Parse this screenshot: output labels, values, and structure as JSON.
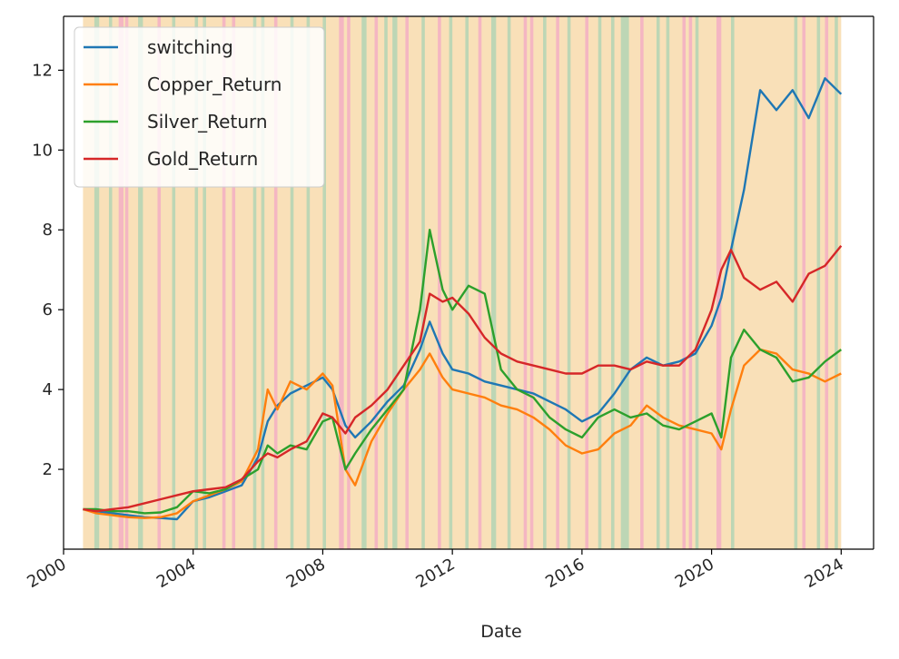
{
  "chart_data": {
    "type": "line",
    "title": "",
    "xlabel": "Date",
    "ylabel": "",
    "xlim": [
      2000.0,
      2025.0
    ],
    "ylim": [
      0.0,
      13.35
    ],
    "x_ticks": [
      {
        "value": 2000,
        "label": "2000"
      },
      {
        "value": 2004,
        "label": "2004"
      },
      {
        "value": 2008,
        "label": "2008"
      },
      {
        "value": 2012,
        "label": "2012"
      },
      {
        "value": 2016,
        "label": "2016"
      },
      {
        "value": 2020,
        "label": "2020"
      },
      {
        "value": 2024,
        "label": "2024"
      }
    ],
    "y_ticks": [
      {
        "value": 2,
        "label": "2"
      },
      {
        "value": 4,
        "label": "4"
      },
      {
        "value": 6,
        "label": "6"
      },
      {
        "value": 8,
        "label": "8"
      },
      {
        "value": 10,
        "label": "10"
      },
      {
        "value": 12,
        "label": "12"
      }
    ],
    "grid": false,
    "legend_position": "top-left",
    "x": [
      2000.6,
      2001.0,
      2001.5,
      2002.0,
      2002.5,
      2003.0,
      2003.5,
      2004.0,
      2004.5,
      2005.0,
      2005.5,
      2006.0,
      2006.3,
      2006.6,
      2007.0,
      2007.5,
      2008.0,
      2008.3,
      2008.7,
      2009.0,
      2009.5,
      2010.0,
      2010.5,
      2011.0,
      2011.3,
      2011.7,
      2012.0,
      2012.5,
      2013.0,
      2013.5,
      2014.0,
      2014.5,
      2015.0,
      2015.5,
      2016.0,
      2016.5,
      2017.0,
      2017.5,
      2018.0,
      2018.5,
      2019.0,
      2019.5,
      2020.0,
      2020.3,
      2020.6,
      2021.0,
      2021.5,
      2022.0,
      2022.5,
      2023.0,
      2023.5,
      2024.0
    ],
    "series": [
      {
        "name": "switching",
        "color": "#1f77b4",
        "values": [
          1.0,
          0.95,
          0.9,
          0.85,
          0.8,
          0.78,
          0.75,
          1.2,
          1.3,
          1.45,
          1.6,
          2.3,
          3.2,
          3.6,
          3.9,
          4.1,
          4.3,
          4.0,
          3.1,
          2.8,
          3.2,
          3.7,
          4.1,
          5.0,
          5.7,
          4.9,
          4.5,
          4.4,
          4.2,
          4.1,
          4.0,
          3.9,
          3.7,
          3.5,
          3.2,
          3.4,
          3.9,
          4.5,
          4.8,
          4.6,
          4.7,
          4.9,
          5.6,
          6.3,
          7.5,
          9.0,
          11.5,
          11.0,
          11.5,
          10.8,
          11.8,
          11.4
        ]
      },
      {
        "name": "Copper_Return",
        "color": "#ff7f0e",
        "values": [
          1.0,
          0.9,
          0.85,
          0.8,
          0.78,
          0.8,
          0.9,
          1.2,
          1.35,
          1.5,
          1.7,
          2.5,
          4.0,
          3.5,
          4.2,
          4.0,
          4.4,
          4.1,
          2.0,
          1.6,
          2.7,
          3.4,
          4.0,
          4.5,
          4.9,
          4.3,
          4.0,
          3.9,
          3.8,
          3.6,
          3.5,
          3.3,
          3.0,
          2.6,
          2.4,
          2.5,
          2.9,
          3.1,
          3.6,
          3.3,
          3.1,
          3.0,
          2.9,
          2.5,
          3.5,
          4.6,
          5.0,
          4.9,
          4.5,
          4.4,
          4.2,
          4.4
        ]
      },
      {
        "name": "Silver_Return",
        "color": "#2ca02c",
        "values": [
          1.0,
          1.0,
          0.95,
          0.95,
          0.9,
          0.92,
          1.05,
          1.45,
          1.4,
          1.5,
          1.75,
          2.0,
          2.6,
          2.4,
          2.6,
          2.5,
          3.2,
          3.3,
          2.0,
          2.4,
          3.0,
          3.5,
          4.0,
          6.0,
          8.0,
          6.5,
          6.0,
          6.6,
          6.4,
          4.5,
          4.0,
          3.8,
          3.3,
          3.0,
          2.8,
          3.3,
          3.5,
          3.3,
          3.4,
          3.1,
          3.0,
          3.2,
          3.4,
          2.8,
          4.8,
          5.5,
          5.0,
          4.8,
          4.2,
          4.3,
          4.7,
          5.0
        ]
      },
      {
        "name": "Gold_Return",
        "color": "#d62728",
        "values": [
          1.0,
          0.95,
          1.0,
          1.05,
          1.15,
          1.25,
          1.35,
          1.45,
          1.5,
          1.55,
          1.75,
          2.2,
          2.4,
          2.3,
          2.5,
          2.7,
          3.4,
          3.3,
          2.9,
          3.3,
          3.6,
          4.0,
          4.6,
          5.2,
          6.4,
          6.2,
          6.3,
          5.9,
          5.3,
          4.9,
          4.7,
          4.6,
          4.5,
          4.4,
          4.4,
          4.6,
          4.6,
          4.5,
          4.7,
          4.6,
          4.6,
          5.0,
          6.0,
          7.0,
          7.5,
          6.8,
          6.5,
          6.7,
          6.2,
          6.9,
          7.1,
          7.6
        ]
      }
    ],
    "regime_colors": {
      "orange": "#f9e0b8",
      "green": "#bdd6b5",
      "pink": "#f4b6c2"
    },
    "regimes": [
      {
        "start": 2000.6,
        "end": 2024.0,
        "color": "orange"
      },
      {
        "start": 2000.95,
        "end": 2001.1,
        "color": "green"
      },
      {
        "start": 2001.4,
        "end": 2001.5,
        "color": "green"
      },
      {
        "start": 2001.7,
        "end": 2001.85,
        "color": "pink"
      },
      {
        "start": 2001.9,
        "end": 2002.0,
        "color": "pink"
      },
      {
        "start": 2002.3,
        "end": 2002.45,
        "color": "green"
      },
      {
        "start": 2002.9,
        "end": 2003.0,
        "color": "pink"
      },
      {
        "start": 2003.35,
        "end": 2003.45,
        "color": "green"
      },
      {
        "start": 2004.05,
        "end": 2004.15,
        "color": "green"
      },
      {
        "start": 2004.3,
        "end": 2004.4,
        "color": "green"
      },
      {
        "start": 2004.9,
        "end": 2005.0,
        "color": "pink"
      },
      {
        "start": 2005.2,
        "end": 2005.3,
        "color": "pink"
      },
      {
        "start": 2005.85,
        "end": 2005.95,
        "color": "green"
      },
      {
        "start": 2006.1,
        "end": 2006.2,
        "color": "green"
      },
      {
        "start": 2006.5,
        "end": 2006.6,
        "color": "pink"
      },
      {
        "start": 2007.0,
        "end": 2007.1,
        "color": "green"
      },
      {
        "start": 2007.5,
        "end": 2007.6,
        "color": "green"
      },
      {
        "start": 2008.0,
        "end": 2008.1,
        "color": "green"
      },
      {
        "start": 2008.5,
        "end": 2008.65,
        "color": "pink"
      },
      {
        "start": 2008.75,
        "end": 2008.85,
        "color": "pink"
      },
      {
        "start": 2009.2,
        "end": 2009.35,
        "color": "green"
      },
      {
        "start": 2009.6,
        "end": 2009.7,
        "color": "pink"
      },
      {
        "start": 2009.9,
        "end": 2010.0,
        "color": "green"
      },
      {
        "start": 2010.15,
        "end": 2010.3,
        "color": "green"
      },
      {
        "start": 2010.55,
        "end": 2010.65,
        "color": "pink"
      },
      {
        "start": 2011.05,
        "end": 2011.15,
        "color": "green"
      },
      {
        "start": 2011.55,
        "end": 2011.65,
        "color": "pink"
      },
      {
        "start": 2011.9,
        "end": 2012.0,
        "color": "green"
      },
      {
        "start": 2012.4,
        "end": 2012.5,
        "color": "green"
      },
      {
        "start": 2012.8,
        "end": 2012.9,
        "color": "pink"
      },
      {
        "start": 2013.2,
        "end": 2013.35,
        "color": "green"
      },
      {
        "start": 2013.7,
        "end": 2013.8,
        "color": "green"
      },
      {
        "start": 2014.2,
        "end": 2014.3,
        "color": "pink"
      },
      {
        "start": 2014.4,
        "end": 2014.5,
        "color": "pink"
      },
      {
        "start": 2014.8,
        "end": 2014.9,
        "color": "green"
      },
      {
        "start": 2015.2,
        "end": 2015.3,
        "color": "pink"
      },
      {
        "start": 2015.55,
        "end": 2015.65,
        "color": "green"
      },
      {
        "start": 2016.1,
        "end": 2016.2,
        "color": "pink"
      },
      {
        "start": 2016.5,
        "end": 2016.6,
        "color": "green"
      },
      {
        "start": 2016.9,
        "end": 2017.0,
        "color": "green"
      },
      {
        "start": 2017.2,
        "end": 2017.45,
        "color": "green"
      },
      {
        "start": 2017.8,
        "end": 2017.9,
        "color": "pink"
      },
      {
        "start": 2018.3,
        "end": 2018.4,
        "color": "green"
      },
      {
        "start": 2018.6,
        "end": 2018.7,
        "color": "green"
      },
      {
        "start": 2019.1,
        "end": 2019.2,
        "color": "pink"
      },
      {
        "start": 2019.3,
        "end": 2019.4,
        "color": "pink"
      },
      {
        "start": 2019.5,
        "end": 2019.6,
        "color": "green"
      },
      {
        "start": 2020.15,
        "end": 2020.3,
        "color": "pink"
      },
      {
        "start": 2020.6,
        "end": 2020.7,
        "color": "green"
      },
      {
        "start": 2022.55,
        "end": 2022.65,
        "color": "green"
      },
      {
        "start": 2022.8,
        "end": 2022.9,
        "color": "pink"
      },
      {
        "start": 2023.25,
        "end": 2023.35,
        "color": "green"
      },
      {
        "start": 2023.5,
        "end": 2023.6,
        "color": "pink"
      },
      {
        "start": 2023.8,
        "end": 2023.9,
        "color": "green"
      }
    ]
  }
}
